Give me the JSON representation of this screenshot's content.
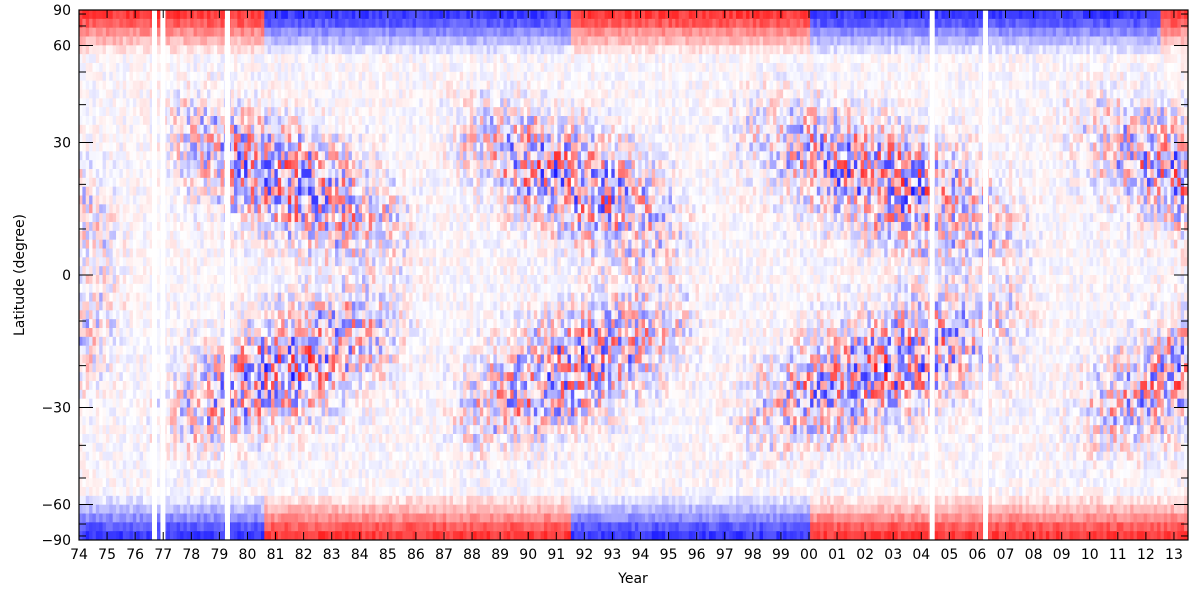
{
  "chart_data": {
    "type": "heatmap",
    "title": "",
    "xlabel": "Year",
    "ylabel": "Latitude (degree)",
    "xlim": [
      1974,
      2013.5
    ],
    "ylim": [
      -90,
      90
    ],
    "y_scale": "sine-latitude",
    "x_tick_labels": [
      "74",
      "75",
      "76",
      "77",
      "78",
      "79",
      "80",
      "81",
      "82",
      "83",
      "84",
      "85",
      "86",
      "87",
      "88",
      "89",
      "90",
      "91",
      "92",
      "93",
      "94",
      "95",
      "96",
      "97",
      "98",
      "99",
      "00",
      "01",
      "02",
      "03",
      "04",
      "05",
      "06",
      "07",
      "08",
      "09",
      "10",
      "11",
      "12",
      "13"
    ],
    "y_tick_labels": [
      "90",
      "60",
      "30",
      "0",
      "−30",
      "−60",
      "−90"
    ],
    "y_tick_values": [
      90,
      60,
      30,
      0,
      -30,
      -60,
      -90
    ],
    "colormap": {
      "negative": "#1a1aff",
      "zero": "#ffffff",
      "positive": "#ff1a1a"
    },
    "data_gaps_years": [
      1976.6,
      1976.9,
      1979.2,
      2004.3,
      2006.2
    ],
    "polar_field_sign": [
      {
        "from": 1974,
        "to": 1976.5,
        "north": 1,
        "south": -1
      },
      {
        "from": 1976.5,
        "to": 1980.5,
        "north": 1,
        "south": -1
      },
      {
        "from": 1980.5,
        "to": 1991.5,
        "north": -1,
        "south": 1
      },
      {
        "from": 1991.5,
        "to": 2000,
        "north": 1,
        "south": -1
      },
      {
        "from": 2000,
        "to": 2012.5,
        "north": -1,
        "south": 1
      },
      {
        "from": 2012.5,
        "to": 2013.5,
        "north": 1,
        "south": 1
      }
    ],
    "grid": false,
    "legend": "none"
  }
}
